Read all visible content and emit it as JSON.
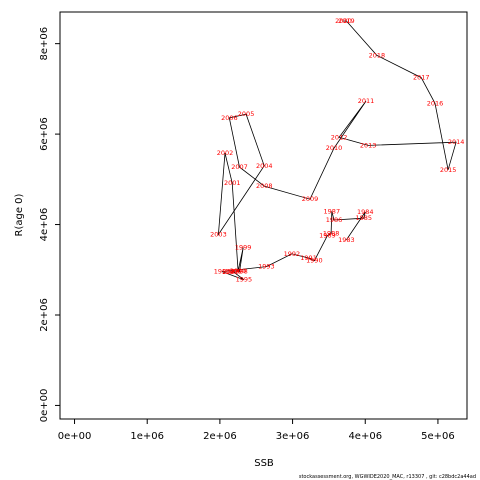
{
  "chart_data": {
    "type": "scatter",
    "title": "",
    "xlabel": "SSB",
    "ylabel": "R(age 0)",
    "xlim": [
      -200000,
      5400000
    ],
    "ylim": [
      -300000,
      8700000
    ],
    "xticks": [
      {
        "value": 0,
        "label": "0e+00"
      },
      {
        "value": 1000000,
        "label": "1e+06"
      },
      {
        "value": 2000000,
        "label": "2e+06"
      },
      {
        "value": 3000000,
        "label": "3e+06"
      },
      {
        "value": 4000000,
        "label": "4e+06"
      },
      {
        "value": 5000000,
        "label": "5e+06"
      }
    ],
    "yticks": [
      {
        "value": 0,
        "label": "0e+00"
      },
      {
        "value": 2000000,
        "label": "2e+06"
      },
      {
        "value": 4000000,
        "label": "4e+06"
      },
      {
        "value": 6000000,
        "label": "6e+06"
      },
      {
        "value": 8000000,
        "label": "8e+06"
      }
    ],
    "grid": false,
    "line_color": "#000000",
    "label_color": "#ff0000",
    "points": [
      {
        "year": "1983",
        "x": 3740000,
        "y": 3660000
      },
      {
        "year": "1984",
        "x": 4000000,
        "y": 4280000
      },
      {
        "year": "1985",
        "x": 3980000,
        "y": 4140000
      },
      {
        "year": "1986",
        "x": 3570000,
        "y": 4100000
      },
      {
        "year": "1987",
        "x": 3540000,
        "y": 4290000
      },
      {
        "year": "1988",
        "x": 3530000,
        "y": 3800000
      },
      {
        "year": "1989",
        "x": 3480000,
        "y": 3760000
      },
      {
        "year": "1990",
        "x": 3300000,
        "y": 3200000
      },
      {
        "year": "1991",
        "x": 3220000,
        "y": 3260000
      },
      {
        "year": "1992",
        "x": 2990000,
        "y": 3350000
      },
      {
        "year": "1993",
        "x": 2640000,
        "y": 3070000
      },
      {
        "year": "1994",
        "x": 2030000,
        "y": 2960000
      },
      {
        "year": "1995",
        "x": 2330000,
        "y": 2780000
      },
      {
        "year": "1996",
        "x": 2180000,
        "y": 2960000
      },
      {
        "year": "1997",
        "x": 2140000,
        "y": 2950000
      },
      {
        "year": "1998",
        "x": 2270000,
        "y": 2960000
      },
      {
        "year": "1999",
        "x": 2320000,
        "y": 3490000
      },
      {
        "year": "2000",
        "x": 2250000,
        "y": 2970000
      },
      {
        "year": "2001",
        "x": 2170000,
        "y": 4920000
      },
      {
        "year": "2002",
        "x": 2070000,
        "y": 5580000
      },
      {
        "year": "2003",
        "x": 1980000,
        "y": 3780000
      },
      {
        "year": "2004",
        "x": 2610000,
        "y": 5300000
      },
      {
        "year": "2005",
        "x": 2360000,
        "y": 6440000
      },
      {
        "year": "2006",
        "x": 2130000,
        "y": 6360000
      },
      {
        "year": "2007",
        "x": 2270000,
        "y": 5270000
      },
      {
        "year": "2008",
        "x": 2610000,
        "y": 4850000
      },
      {
        "year": "2009",
        "x": 3240000,
        "y": 4560000
      },
      {
        "year": "2010",
        "x": 3570000,
        "y": 5690000
      },
      {
        "year": "2011",
        "x": 4010000,
        "y": 6730000
      },
      {
        "year": "2012",
        "x": 3640000,
        "y": 5930000
      },
      {
        "year": "2013",
        "x": 4040000,
        "y": 5750000
      },
      {
        "year": "2014",
        "x": 5250000,
        "y": 5820000
      },
      {
        "year": "2015",
        "x": 5140000,
        "y": 5210000
      },
      {
        "year": "2016",
        "x": 4960000,
        "y": 6680000
      },
      {
        "year": "2017",
        "x": 4770000,
        "y": 7250000
      },
      {
        "year": "2018",
        "x": 4160000,
        "y": 7740000
      },
      {
        "year": "2019",
        "x": 3740000,
        "y": 8500000
      },
      {
        "year": "2020",
        "x": 3700000,
        "y": 8500000
      }
    ],
    "footer": "stockassessment.org, WGWIDE2020_MAC, r13307 ,  git: c28bdc2a44ad"
  }
}
